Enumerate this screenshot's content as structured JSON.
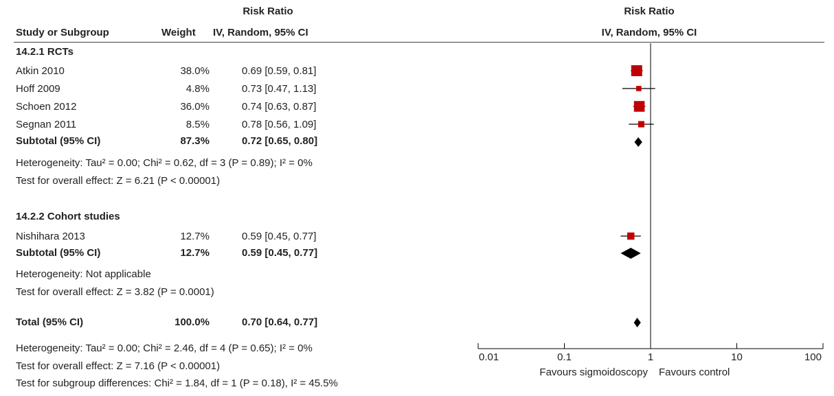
{
  "header": {
    "table_title": "Risk Ratio",
    "table_subtitle": "IV, Random, 95% CI",
    "study_col": "Study or Subgroup",
    "weight_col": "Weight",
    "plot_title": "Risk Ratio",
    "plot_subtitle": "IV, Random, 95% CI"
  },
  "groups": [
    {
      "title": "14.2.1 RCTs",
      "studies": [
        {
          "name": "Atkin 2010",
          "weight": "38.0%",
          "ci": "0.69 [0.59, 0.81]"
        },
        {
          "name": "Hoff 2009",
          "weight": "4.8%",
          "ci": "0.73 [0.47, 1.13]"
        },
        {
          "name": "Schoen 2012",
          "weight": "36.0%",
          "ci": "0.74 [0.63, 0.87]"
        },
        {
          "name": "Segnan 2011",
          "weight": "8.5%",
          "ci": "0.78 [0.56, 1.09]"
        }
      ],
      "subtotal": {
        "name": "Subtotal (95% CI)",
        "weight": "87.3%",
        "ci": "0.72 [0.65, 0.80]"
      },
      "heterogeneity": "Heterogeneity: Tau² = 0.00; Chi² = 0.62, df = 3 (P = 0.89); I² = 0%",
      "overall": "Test for overall effect: Z = 6.21 (P < 0.00001)"
    },
    {
      "title": "14.2.2 Cohort studies",
      "studies": [
        {
          "name": "Nishihara 2013",
          "weight": "12.7%",
          "ci": "0.59 [0.45, 0.77]"
        }
      ],
      "subtotal": {
        "name": "Subtotal (95% CI)",
        "weight": "12.7%",
        "ci": "0.59 [0.45, 0.77]"
      },
      "heterogeneity": "Heterogeneity: Not applicable",
      "overall": "Test for overall effect: Z = 3.82 (P = 0.0001)"
    }
  ],
  "total": {
    "name": "Total (95% CI)",
    "weight": "100.0%",
    "ci": "0.70 [0.64, 0.77]",
    "heterogeneity": "Heterogeneity: Tau² = 0.00; Chi² = 2.46, df = 4 (P = 0.65); I² = 0%",
    "overall": "Test for overall effect: Z = 7.16 (P < 0.00001)",
    "subgroup": "Test for subgroup differences: Chi² = 1.84, df = 1 (P = 0.18), I² = 45.5%"
  },
  "colors": {
    "study_marker": "#c00000",
    "summary_diamond": "#000000",
    "lines": "#000000"
  },
  "chart_data": {
    "type": "forest",
    "title": "Risk Ratio",
    "subtitle": "IV, Random, 95% CI",
    "x_scale": "log",
    "xlim": [
      0.01,
      100
    ],
    "ticks": [
      0.01,
      0.1,
      1,
      10,
      100
    ],
    "tick_labels": [
      "0.01",
      "0.1",
      "1",
      "10",
      "100"
    ],
    "null_line": 1,
    "favours_left": "Favours sigmoidoscopy",
    "favours_right": "Favours control",
    "studies": [
      {
        "name": "Atkin 2010",
        "rr": 0.69,
        "lo": 0.59,
        "hi": 0.81,
        "weight": 38.0
      },
      {
        "name": "Hoff 2009",
        "rr": 0.73,
        "lo": 0.47,
        "hi": 1.13,
        "weight": 4.8
      },
      {
        "name": "Schoen 2012",
        "rr": 0.74,
        "lo": 0.63,
        "hi": 0.87,
        "weight": 36.0
      },
      {
        "name": "Segnan 2011",
        "rr": 0.78,
        "lo": 0.56,
        "hi": 1.09,
        "weight": 8.5
      },
      {
        "name": "Nishihara 2013",
        "rr": 0.59,
        "lo": 0.45,
        "hi": 0.77,
        "weight": 12.7
      }
    ],
    "summaries": [
      {
        "name": "Subtotal 14.2.1 RCTs",
        "rr": 0.72,
        "lo": 0.65,
        "hi": 0.8
      },
      {
        "name": "Subtotal 14.2.2 Cohort studies",
        "rr": 0.59,
        "lo": 0.45,
        "hi": 0.77
      },
      {
        "name": "Total",
        "rr": 0.7,
        "lo": 0.64,
        "hi": 0.77
      }
    ]
  }
}
